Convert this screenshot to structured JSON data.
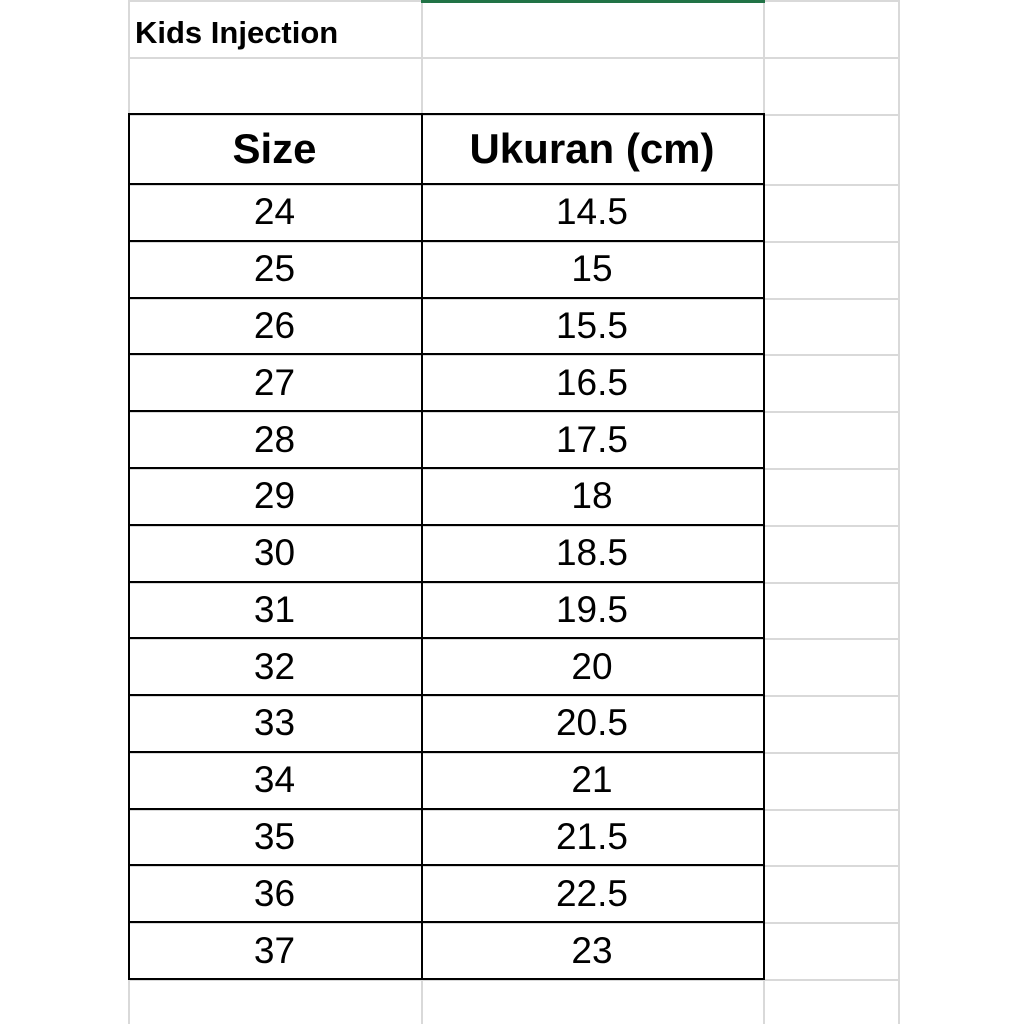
{
  "title": "Kids Injection",
  "table": {
    "header": [
      "Size",
      "Ukuran (cm)"
    ],
    "rows": [
      [
        24,
        14.5
      ],
      [
        25,
        15
      ],
      [
        26,
        15.5
      ],
      [
        27,
        16.5
      ],
      [
        28,
        17.5
      ],
      [
        29,
        18
      ],
      [
        30,
        18.5
      ],
      [
        31,
        19.5
      ],
      [
        32,
        20
      ],
      [
        33,
        20.5
      ],
      [
        34,
        21
      ],
      [
        35,
        21.5
      ],
      [
        36,
        22.5
      ],
      [
        37,
        23
      ]
    ]
  }
}
